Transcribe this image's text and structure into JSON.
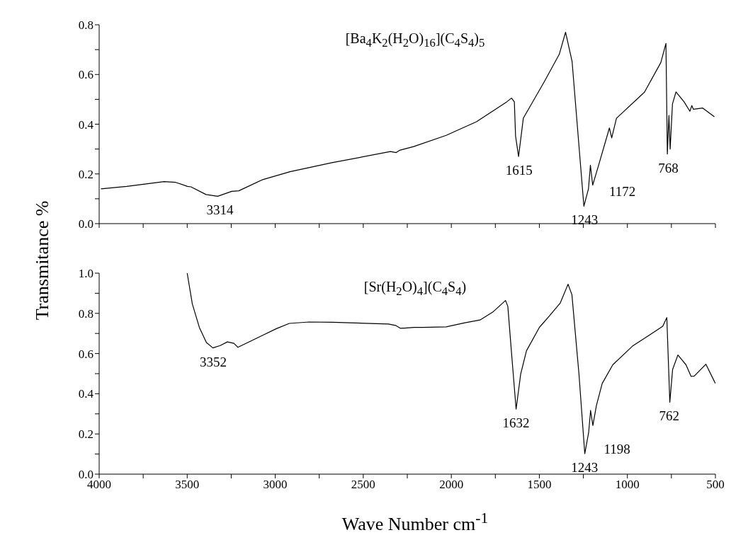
{
  "chart_data": [
    {
      "type": "line",
      "title": "[Ba$_{4}$K$_{2}$(H$_{2}$O)$_{16}$](C$_{4}$S$_{4}$)$_{5}$",
      "ylabel": "Transmitance %",
      "xlim": [
        4000,
        500
      ],
      "xticks": [
        4000,
        {
          "value": 3750,
          "label": null
        },
        3500,
        {
          "value": 3250,
          "label": null
        },
        3000,
        {
          "value": 2750,
          "label": null
        },
        2500,
        {
          "value": 2250,
          "label": null
        },
        2000,
        {
          "value": 1750,
          "label": null
        },
        1500,
        {
          "value": 1250,
          "label": null
        },
        1000,
        {
          "value": 750,
          "label": null
        },
        500
      ],
      "ylim": [
        0,
        0.8
      ],
      "yticks": [
        {
          "value": 0,
          "label": "0.0"
        },
        {
          "value": 0.1,
          "label": null
        },
        0.2,
        {
          "value": 0.3,
          "label": null
        },
        0.4,
        {
          "value": 0.5,
          "label": null
        },
        0.6,
        {
          "value": 0.7,
          "label": null
        },
        0.8
      ],
      "tick_labels": "y",
      "legend": false,
      "grid": false,
      "marker": "none",
      "line_style": "solid",
      "series": [
        {
          "color": "#000000",
          "x": [
            3990,
            3843,
            3631,
            3565,
            3499,
            3479,
            3393,
            3327,
            3247,
            3207,
            3075,
            2916,
            2678,
            2346,
            2313,
            2294,
            2214,
            2029,
            1857,
            1685,
            1658,
            1642,
            1635,
            1618,
            1591,
            1472,
            1387,
            1351,
            1314,
            1247,
            1221,
            1210,
            1197,
            1168,
            1102,
            1089,
            1062,
            903,
            810,
            781,
            773,
            764,
            757,
            744,
            724,
            678,
            645,
            634,
            625,
            572,
            506
          ],
          "values": [
            0.14,
            0.15,
            0.169,
            0.166,
            0.15,
            0.148,
            0.117,
            0.11,
            0.13,
            0.132,
            0.176,
            0.209,
            0.245,
            0.29,
            0.286,
            0.295,
            0.31,
            0.355,
            0.41,
            0.49,
            0.505,
            0.49,
            0.352,
            0.27,
            0.424,
            0.571,
            0.681,
            0.77,
            0.652,
            0.07,
            0.14,
            0.235,
            0.155,
            0.224,
            0.385,
            0.345,
            0.424,
            0.529,
            0.648,
            0.725,
            0.28,
            0.435,
            0.3,
            0.481,
            0.53,
            0.49,
            0.452,
            0.475,
            0.46,
            0.465,
            0.43
          ]
        }
      ],
      "annotations": [
        {
          "text": "3314",
          "x": 3314,
          "y": 0.11
        },
        {
          "text": "1615",
          "x": 1615,
          "y": 0.27
        },
        {
          "text": "1243",
          "x": 1243,
          "y": 0.07
        },
        {
          "text": "1172",
          "x": 1168,
          "y": 0.224
        },
        {
          "text": "768",
          "x": 768,
          "y": 0.28
        }
      ]
    },
    {
      "type": "line",
      "title": "[Sr(H$_{2}$O)$_{4}$](C$_{4}$S$_{4}$)",
      "xlabel": "Wave Number cm$^{-1}$",
      "xlim": [
        4000,
        500
      ],
      "xticks": [
        4000,
        {
          "value": 3750,
          "label": null
        },
        3500,
        {
          "value": 3250,
          "label": null
        },
        3000,
        {
          "value": 2750,
          "label": null
        },
        2500,
        {
          "value": 2250,
          "label": null
        },
        2000,
        {
          "value": 1750,
          "label": null
        },
        1500,
        {
          "value": 1250,
          "label": null
        },
        1000,
        {
          "value": 750,
          "label": null
        },
        500
      ],
      "ylim": [
        0,
        1.0
      ],
      "yticks": [
        {
          "value": 0,
          "label": "0.0"
        },
        {
          "value": 0.1,
          "label": null
        },
        0.2,
        {
          "value": 0.3,
          "label": null
        },
        0.4,
        {
          "value": 0.5,
          "label": null
        },
        0.6,
        {
          "value": 0.7,
          "label": null
        },
        0.8,
        {
          "value": 0.9,
          "label": null
        },
        {
          "value": 1,
          "label": "1.0"
        }
      ],
      "legend": false,
      "grid": false,
      "marker": "none",
      "line_style": "solid",
      "series": [
        {
          "color": "#000000",
          "x": [
            3500,
            3471,
            3431,
            3391,
            3354,
            3312,
            3272,
            3235,
            3212,
            3073,
            2993,
            2920,
            2808,
            2675,
            2357,
            2317,
            2290,
            2264,
            2211,
            2161,
            2029,
            1923,
            1837,
            1765,
            1692,
            1679,
            1659,
            1632,
            1606,
            1573,
            1500,
            1447,
            1381,
            1337,
            1315,
            1275,
            1242,
            1220,
            1209,
            1196,
            1176,
            1143,
            1083,
            971,
            878,
            799,
            776,
            759,
            743,
            713,
            667,
            638,
            620,
            554,
            500
          ],
          "values": [
            1.0,
            0.847,
            0.73,
            0.655,
            0.628,
            0.64,
            0.658,
            0.651,
            0.631,
            0.69,
            0.724,
            0.75,
            0.757,
            0.756,
            0.747,
            0.74,
            0.726,
            0.727,
            0.73,
            0.73,
            0.733,
            0.753,
            0.767,
            0.806,
            0.864,
            0.835,
            0.614,
            0.323,
            0.498,
            0.614,
            0.73,
            0.783,
            0.852,
            0.945,
            0.893,
            0.498,
            0.102,
            0.207,
            0.317,
            0.242,
            0.341,
            0.451,
            0.544,
            0.637,
            0.69,
            0.736,
            0.779,
            0.358,
            0.521,
            0.593,
            0.544,
            0.486,
            0.488,
            0.547,
            0.451
          ]
        }
      ],
      "annotations": [
        {
          "text": "3352",
          "x": 3352,
          "y": 0.628
        },
        {
          "text": "1632",
          "x": 1632,
          "y": 0.323
        },
        {
          "text": "1243",
          "x": 1243,
          "y": 0.102
        },
        {
          "text": "1198",
          "x": 1198,
          "y": 0.242
        },
        {
          "text": "762",
          "x": 762,
          "y": 0.358
        }
      ]
    }
  ]
}
